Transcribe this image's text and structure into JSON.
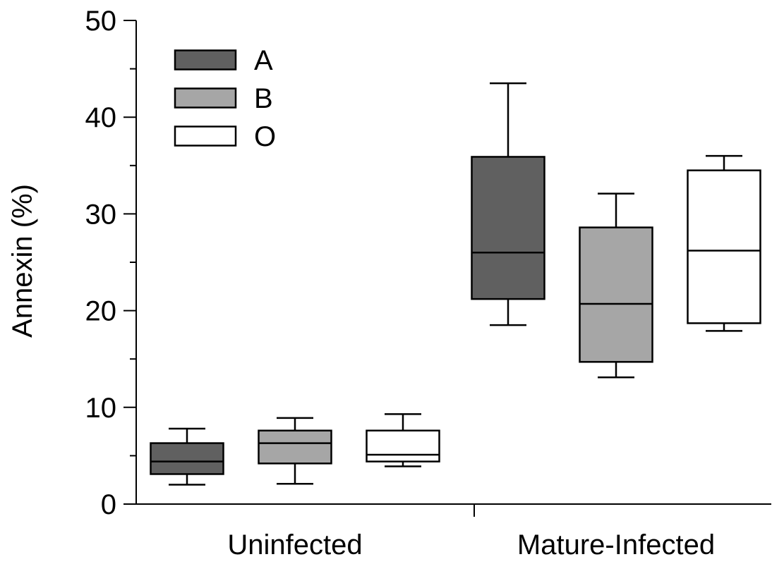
{
  "chart_data": {
    "type": "box",
    "ylabel": "Annexin (%)",
    "ylim": [
      0,
      50
    ],
    "yticks": [
      0,
      10,
      20,
      30,
      40,
      50
    ],
    "categories": [
      "Uninfected",
      "Mature-Infected"
    ],
    "series": [
      {
        "name": "A",
        "color": "#606060",
        "boxes": [
          {
            "min": 2.0,
            "q1": 3.1,
            "median": 4.4,
            "q3": 6.3,
            "max": 7.8
          },
          {
            "min": 18.5,
            "q1": 21.2,
            "median": 26.0,
            "q3": 35.9,
            "max": 43.5
          }
        ]
      },
      {
        "name": "B",
        "color": "#a6a6a6",
        "boxes": [
          {
            "min": 2.1,
            "q1": 4.2,
            "median": 6.3,
            "q3": 7.6,
            "max": 8.9
          },
          {
            "min": 13.1,
            "q1": 14.7,
            "median": 20.7,
            "q3": 28.6,
            "max": 32.1
          }
        ]
      },
      {
        "name": "O",
        "color": "#ffffff",
        "boxes": [
          {
            "min": 3.9,
            "q1": 4.4,
            "median": 5.1,
            "q3": 7.6,
            "max": 9.3
          },
          {
            "min": 17.9,
            "q1": 18.7,
            "median": 26.2,
            "q3": 34.5,
            "max": 36.0
          }
        ]
      }
    ],
    "legend_position": "top-left",
    "grid": false
  }
}
